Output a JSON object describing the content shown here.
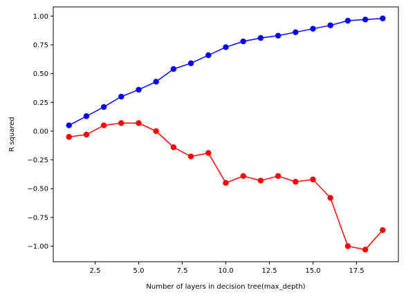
{
  "chart_data": {
    "type": "line",
    "title": "",
    "xlabel": "Number of layers in decision tree(max_depth)",
    "ylabel": "R squared",
    "xlim": [
      0.1,
      19.9
    ],
    "ylim": [
      -1.135,
      1.08
    ],
    "xticks": [
      2.5,
      5.0,
      7.5,
      10.0,
      12.5,
      15.0,
      17.5
    ],
    "xtick_labels": [
      "2.5",
      "5.0",
      "7.5",
      "10.0",
      "12.5",
      "15.0",
      "17.5"
    ],
    "yticks": [
      -1.0,
      -0.75,
      -0.5,
      -0.25,
      0.0,
      0.25,
      0.5,
      0.75,
      1.0
    ],
    "ytick_labels": [
      "−1.00",
      "−0.75",
      "−0.50",
      "−0.25",
      "0.00",
      "0.25",
      "0.50",
      "0.75",
      "1.00"
    ],
    "grid": false,
    "x": [
      1,
      2,
      3,
      4,
      5,
      6,
      7,
      8,
      9,
      10,
      11,
      12,
      13,
      14,
      15,
      16,
      17,
      18,
      19
    ],
    "series": [
      {
        "color": "#0000ff",
        "marker": "circle",
        "values": [
          0.05,
          0.13,
          0.21,
          0.3,
          0.36,
          0.43,
          0.54,
          0.59,
          0.66,
          0.73,
          0.78,
          0.81,
          0.83,
          0.86,
          0.89,
          0.92,
          0.96,
          0.97,
          0.98
        ]
      },
      {
        "color": "#ff0000",
        "marker": "circle",
        "values": [
          -0.05,
          -0.03,
          0.05,
          0.07,
          0.07,
          0.0,
          -0.14,
          -0.22,
          -0.19,
          -0.45,
          -0.39,
          -0.43,
          -0.39,
          -0.44,
          -0.42,
          -0.58,
          -1.0,
          -1.03,
          -0.86
        ]
      }
    ]
  }
}
